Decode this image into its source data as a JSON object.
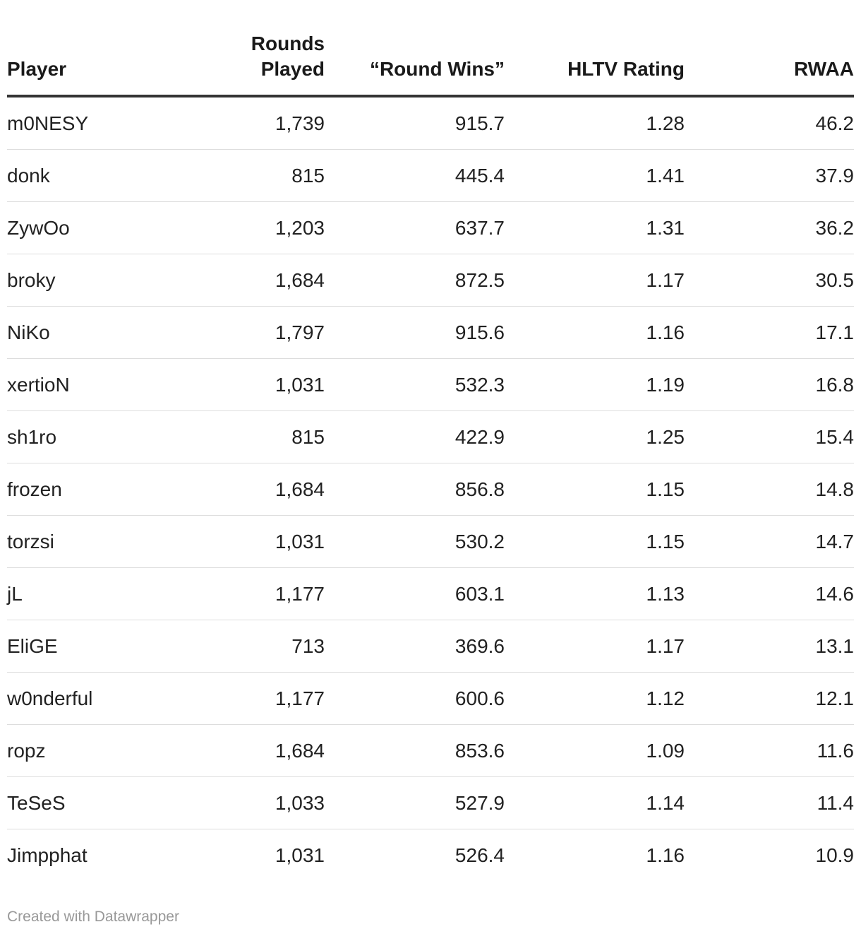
{
  "chart_data": {
    "type": "table",
    "columns": [
      {
        "lines": [
          "",
          "Player"
        ]
      },
      {
        "lines": [
          "Rounds",
          "Played"
        ]
      },
      {
        "lines": [
          "",
          "“Round Wins”"
        ]
      },
      {
        "lines": [
          "",
          "HLTV Rating"
        ]
      },
      {
        "lines": [
          "",
          "RWAA"
        ]
      }
    ],
    "rows": [
      [
        "m0NESY",
        "1,739",
        "915.7",
        "1.28",
        "46.2"
      ],
      [
        "donk",
        "815",
        "445.4",
        "1.41",
        "37.9"
      ],
      [
        "ZywOo",
        "1,203",
        "637.7",
        "1.31",
        "36.2"
      ],
      [
        "broky",
        "1,684",
        "872.5",
        "1.17",
        "30.5"
      ],
      [
        "NiKo",
        "1,797",
        "915.6",
        "1.16",
        "17.1"
      ],
      [
        "xertioN",
        "1,031",
        "532.3",
        "1.19",
        "16.8"
      ],
      [
        "sh1ro",
        "815",
        "422.9",
        "1.25",
        "15.4"
      ],
      [
        "frozen",
        "1,684",
        "856.8",
        "1.15",
        "14.8"
      ],
      [
        "torzsi",
        "1,031",
        "530.2",
        "1.15",
        "14.7"
      ],
      [
        "jL",
        "1,177",
        "603.1",
        "1.13",
        "14.6"
      ],
      [
        "EliGE",
        "713",
        "369.6",
        "1.17",
        "13.1"
      ],
      [
        "w0nderful",
        "1,177",
        "600.6",
        "1.12",
        "12.1"
      ],
      [
        "ropz",
        "1,684",
        "853.6",
        "1.09",
        "11.6"
      ],
      [
        "TeSeS",
        "1,033",
        "527.9",
        "1.14",
        "11.4"
      ],
      [
        "Jimpphat",
        "1,031",
        "526.4",
        "1.16",
        "10.9"
      ]
    ]
  },
  "footer": {
    "credit": "Created with Datawrapper"
  }
}
